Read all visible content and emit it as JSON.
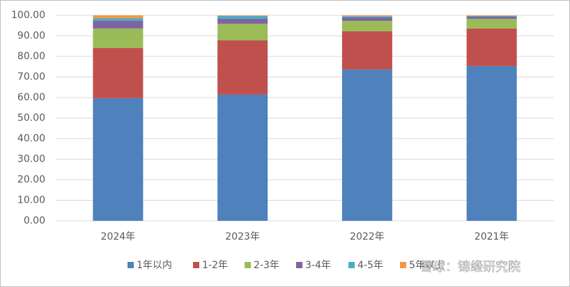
{
  "chart_data": {
    "type": "stacked_bar",
    "categories": [
      "2024年",
      "2023年",
      "2022年",
      "2021年"
    ],
    "series": [
      {
        "name": "1年以内",
        "color": "#4f81bd",
        "values": [
          59.7,
          61.4,
          73.6,
          75.3
        ]
      },
      {
        "name": "1-2年",
        "color": "#c0504d",
        "values": [
          24.4,
          26.4,
          18.6,
          18.3
        ]
      },
      {
        "name": "2-3年",
        "color": "#9bbb59",
        "values": [
          9.5,
          8.1,
          5.1,
          4.7
        ]
      },
      {
        "name": "3-4年",
        "color": "#8064a2",
        "values": [
          3.7,
          2.4,
          1.7,
          1.0
        ]
      },
      {
        "name": "4-5年",
        "color": "#4bacc6",
        "values": [
          1.3,
          1.4,
          0.6,
          0.4
        ]
      },
      {
        "name": "5年以上",
        "color": "#f79646",
        "values": [
          1.4,
          0.3,
          0.4,
          0.3
        ]
      }
    ],
    "ylim": [
      0,
      100
    ],
    "yticks": [
      {
        "value": 0,
        "label": "0.00"
      },
      {
        "value": 10,
        "label": "10.00"
      },
      {
        "value": 20,
        "label": "20.00"
      },
      {
        "value": 30,
        "label": "30.00"
      },
      {
        "value": 40,
        "label": "40.00"
      },
      {
        "value": 50,
        "label": "50.00"
      },
      {
        "value": 60,
        "label": "60.00"
      },
      {
        "value": 70,
        "label": "70.00"
      },
      {
        "value": 80,
        "label": "80.00"
      },
      {
        "value": 90,
        "label": "90.00"
      },
      {
        "value": 100,
        "label": "100.00"
      }
    ],
    "grid": true,
    "legend": "bottom",
    "watermark": "雪球：锦缎研究院"
  }
}
